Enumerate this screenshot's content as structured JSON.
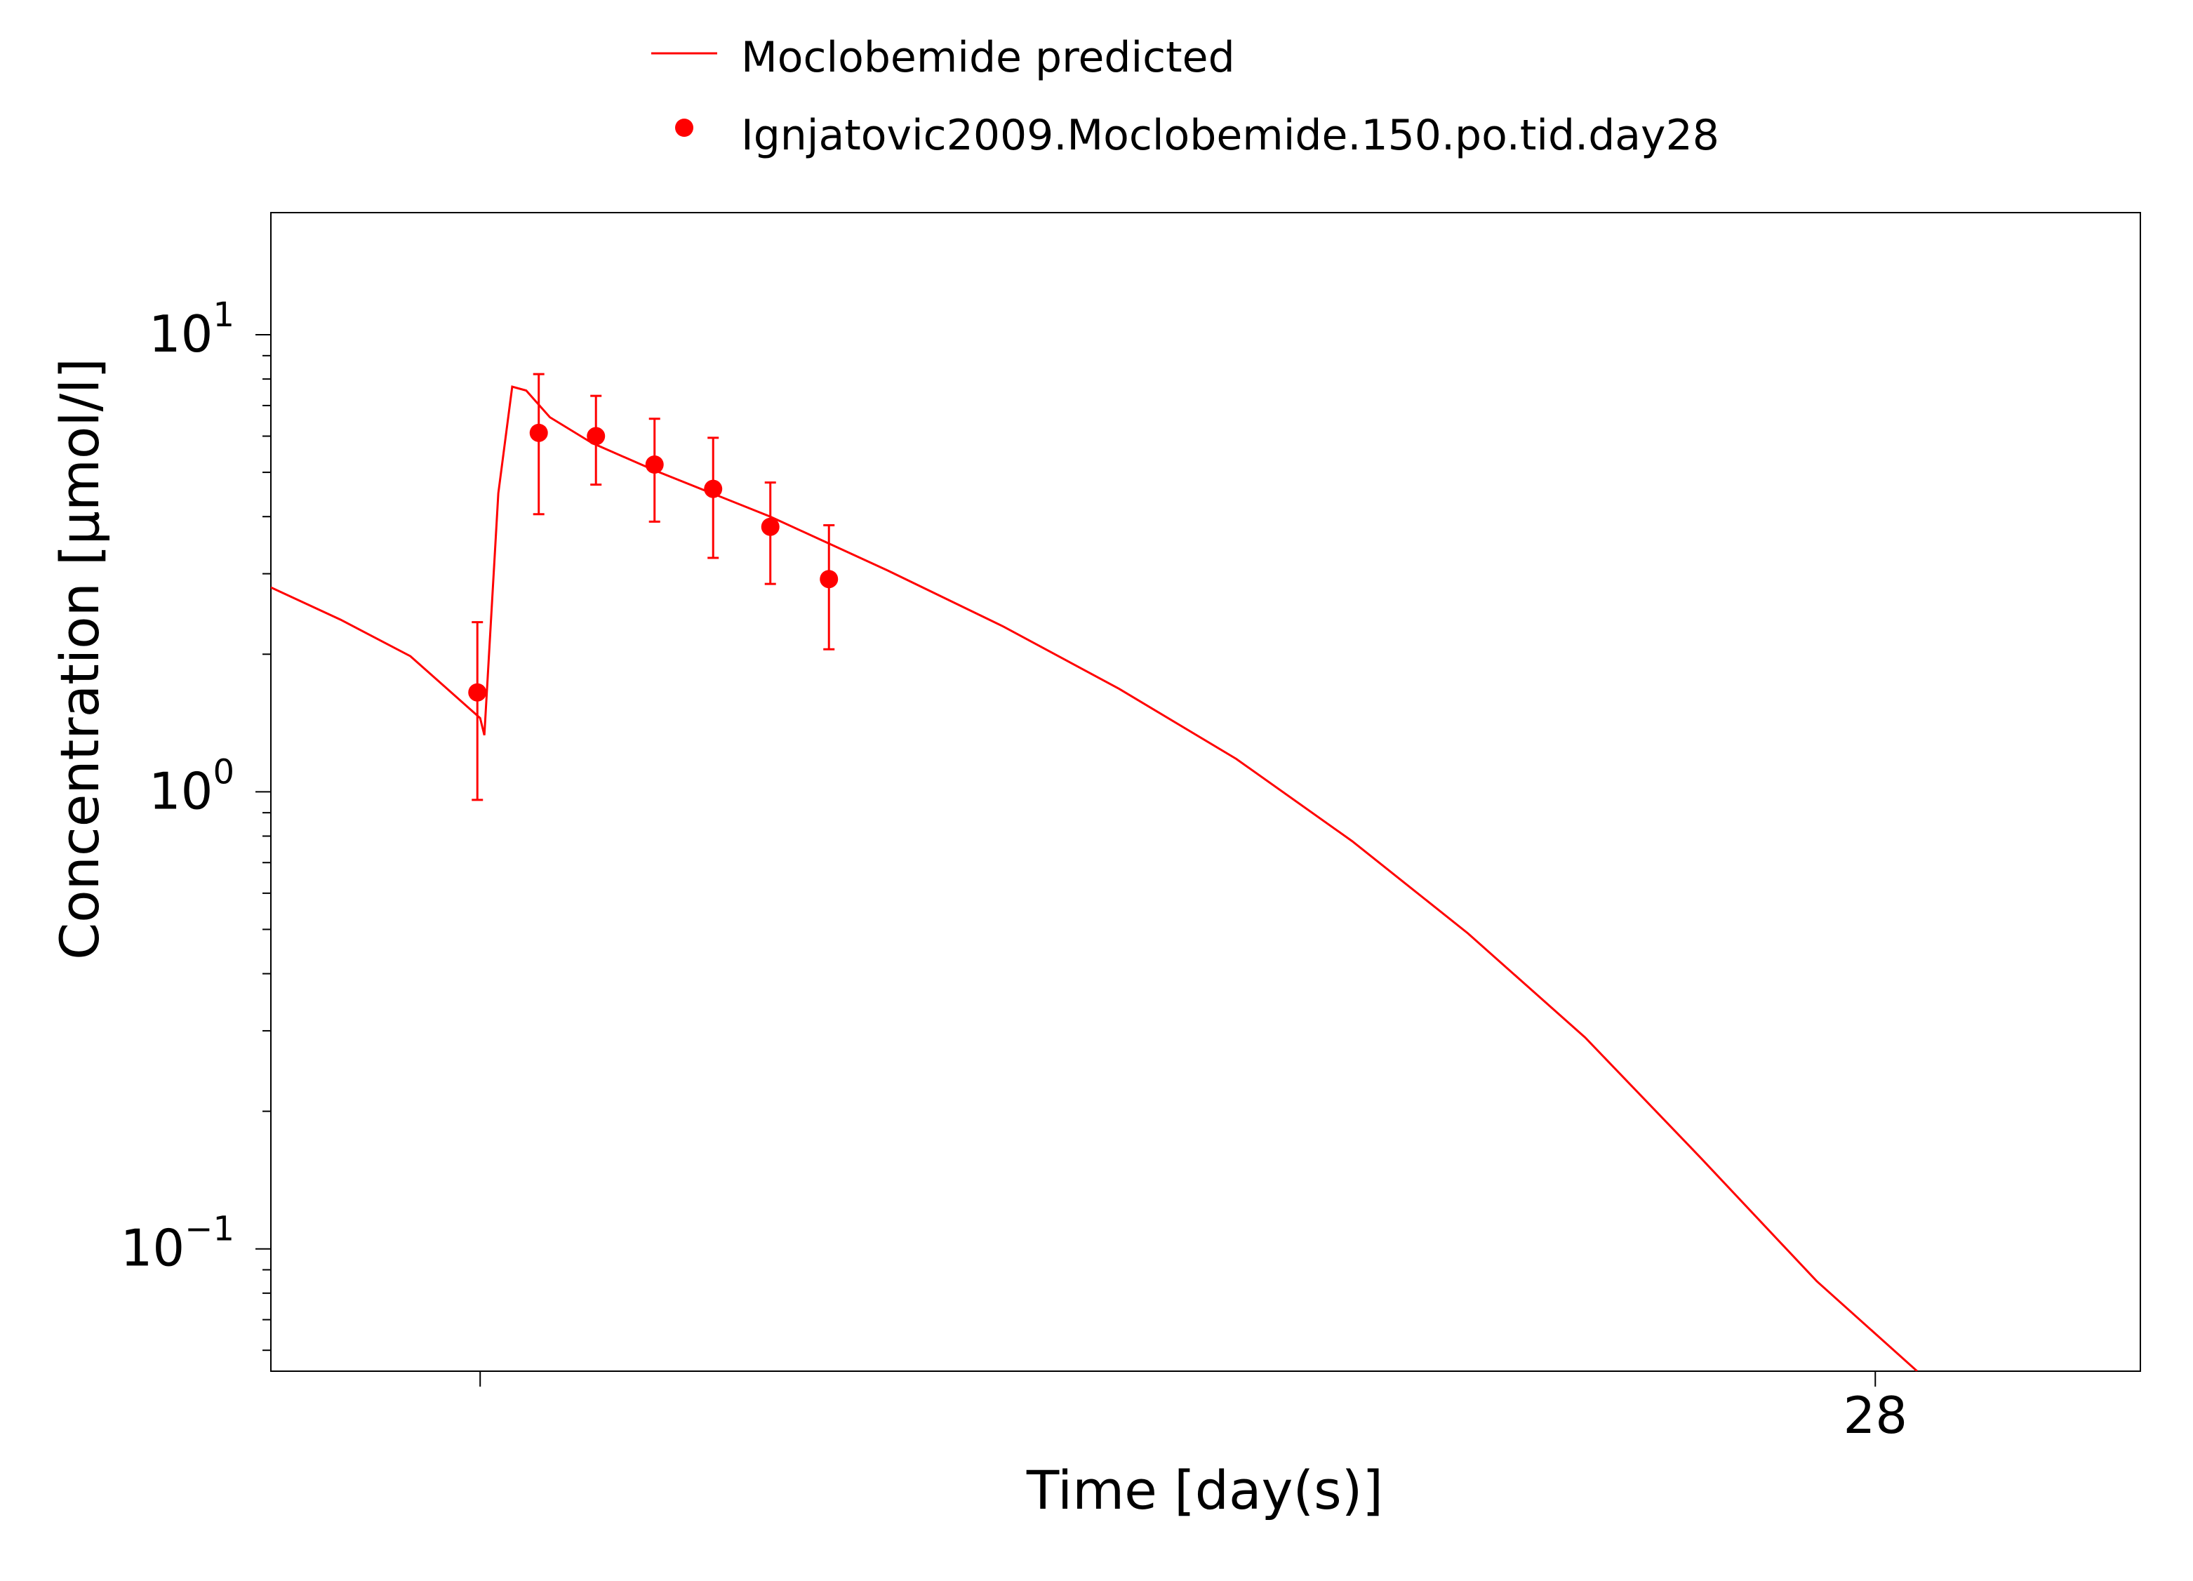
{
  "chart_data": {
    "type": "line",
    "title": "",
    "xlabel": "Time [day(s)]",
    "ylabel": "Concentration [µmol/l]",
    "y_scale": "log",
    "xlim": [
      26.85,
      28.19
    ],
    "ylim": [
      0.054,
      18.5
    ],
    "x_ticks": [
      {
        "value": 27.0,
        "label": ""
      },
      {
        "value": 28.0,
        "label": "28"
      }
    ],
    "y_ticks": [
      {
        "value": 0.1,
        "base": "10",
        "exp": "−1"
      },
      {
        "value": 1,
        "base": "10",
        "exp": "0"
      },
      {
        "value": 10,
        "base": "10",
        "exp": "1"
      }
    ],
    "legend": {
      "position": "top-center"
    },
    "color": "#ff0000",
    "series": [
      {
        "name": "Moclobemide predicted",
        "kind": "line",
        "points": [
          [
            26.85,
            2.8
          ],
          [
            26.9,
            2.38
          ],
          [
            26.95,
            1.98
          ],
          [
            27.0,
            1.45
          ],
          [
            27.003,
            1.33
          ],
          [
            27.013,
            4.5
          ],
          [
            27.023,
            7.7
          ],
          [
            27.033,
            7.55
          ],
          [
            27.05,
            6.6
          ],
          [
            27.08,
            5.8
          ],
          [
            27.125,
            5.05
          ],
          [
            27.208,
            4.0
          ],
          [
            27.292,
            3.05
          ],
          [
            27.375,
            2.3
          ],
          [
            27.458,
            1.68
          ],
          [
            27.542,
            1.18
          ],
          [
            27.625,
            0.78
          ],
          [
            27.708,
            0.49
          ],
          [
            27.792,
            0.29
          ],
          [
            27.875,
            0.158
          ],
          [
            27.958,
            0.085
          ],
          [
            28.03,
            0.054
          ]
        ]
      },
      {
        "name": "Ignjatovic2009.Moclobemide.150.po.tid.day28",
        "kind": "points",
        "points": [
          {
            "x": 26.998,
            "y": 1.65,
            "lo": 0.96,
            "hi": 2.35
          },
          {
            "x": 27.042,
            "y": 6.1,
            "lo": 4.05,
            "hi": 8.2
          },
          {
            "x": 27.083,
            "y": 6.0,
            "lo": 4.7,
            "hi": 7.35
          },
          {
            "x": 27.125,
            "y": 5.2,
            "lo": 3.9,
            "hi": 6.55
          },
          {
            "x": 27.167,
            "y": 4.6,
            "lo": 3.25,
            "hi": 5.95
          },
          {
            "x": 27.208,
            "y": 3.8,
            "lo": 2.85,
            "hi": 4.75
          },
          {
            "x": 27.25,
            "y": 2.92,
            "lo": 2.05,
            "hi": 3.83
          }
        ]
      }
    ]
  }
}
